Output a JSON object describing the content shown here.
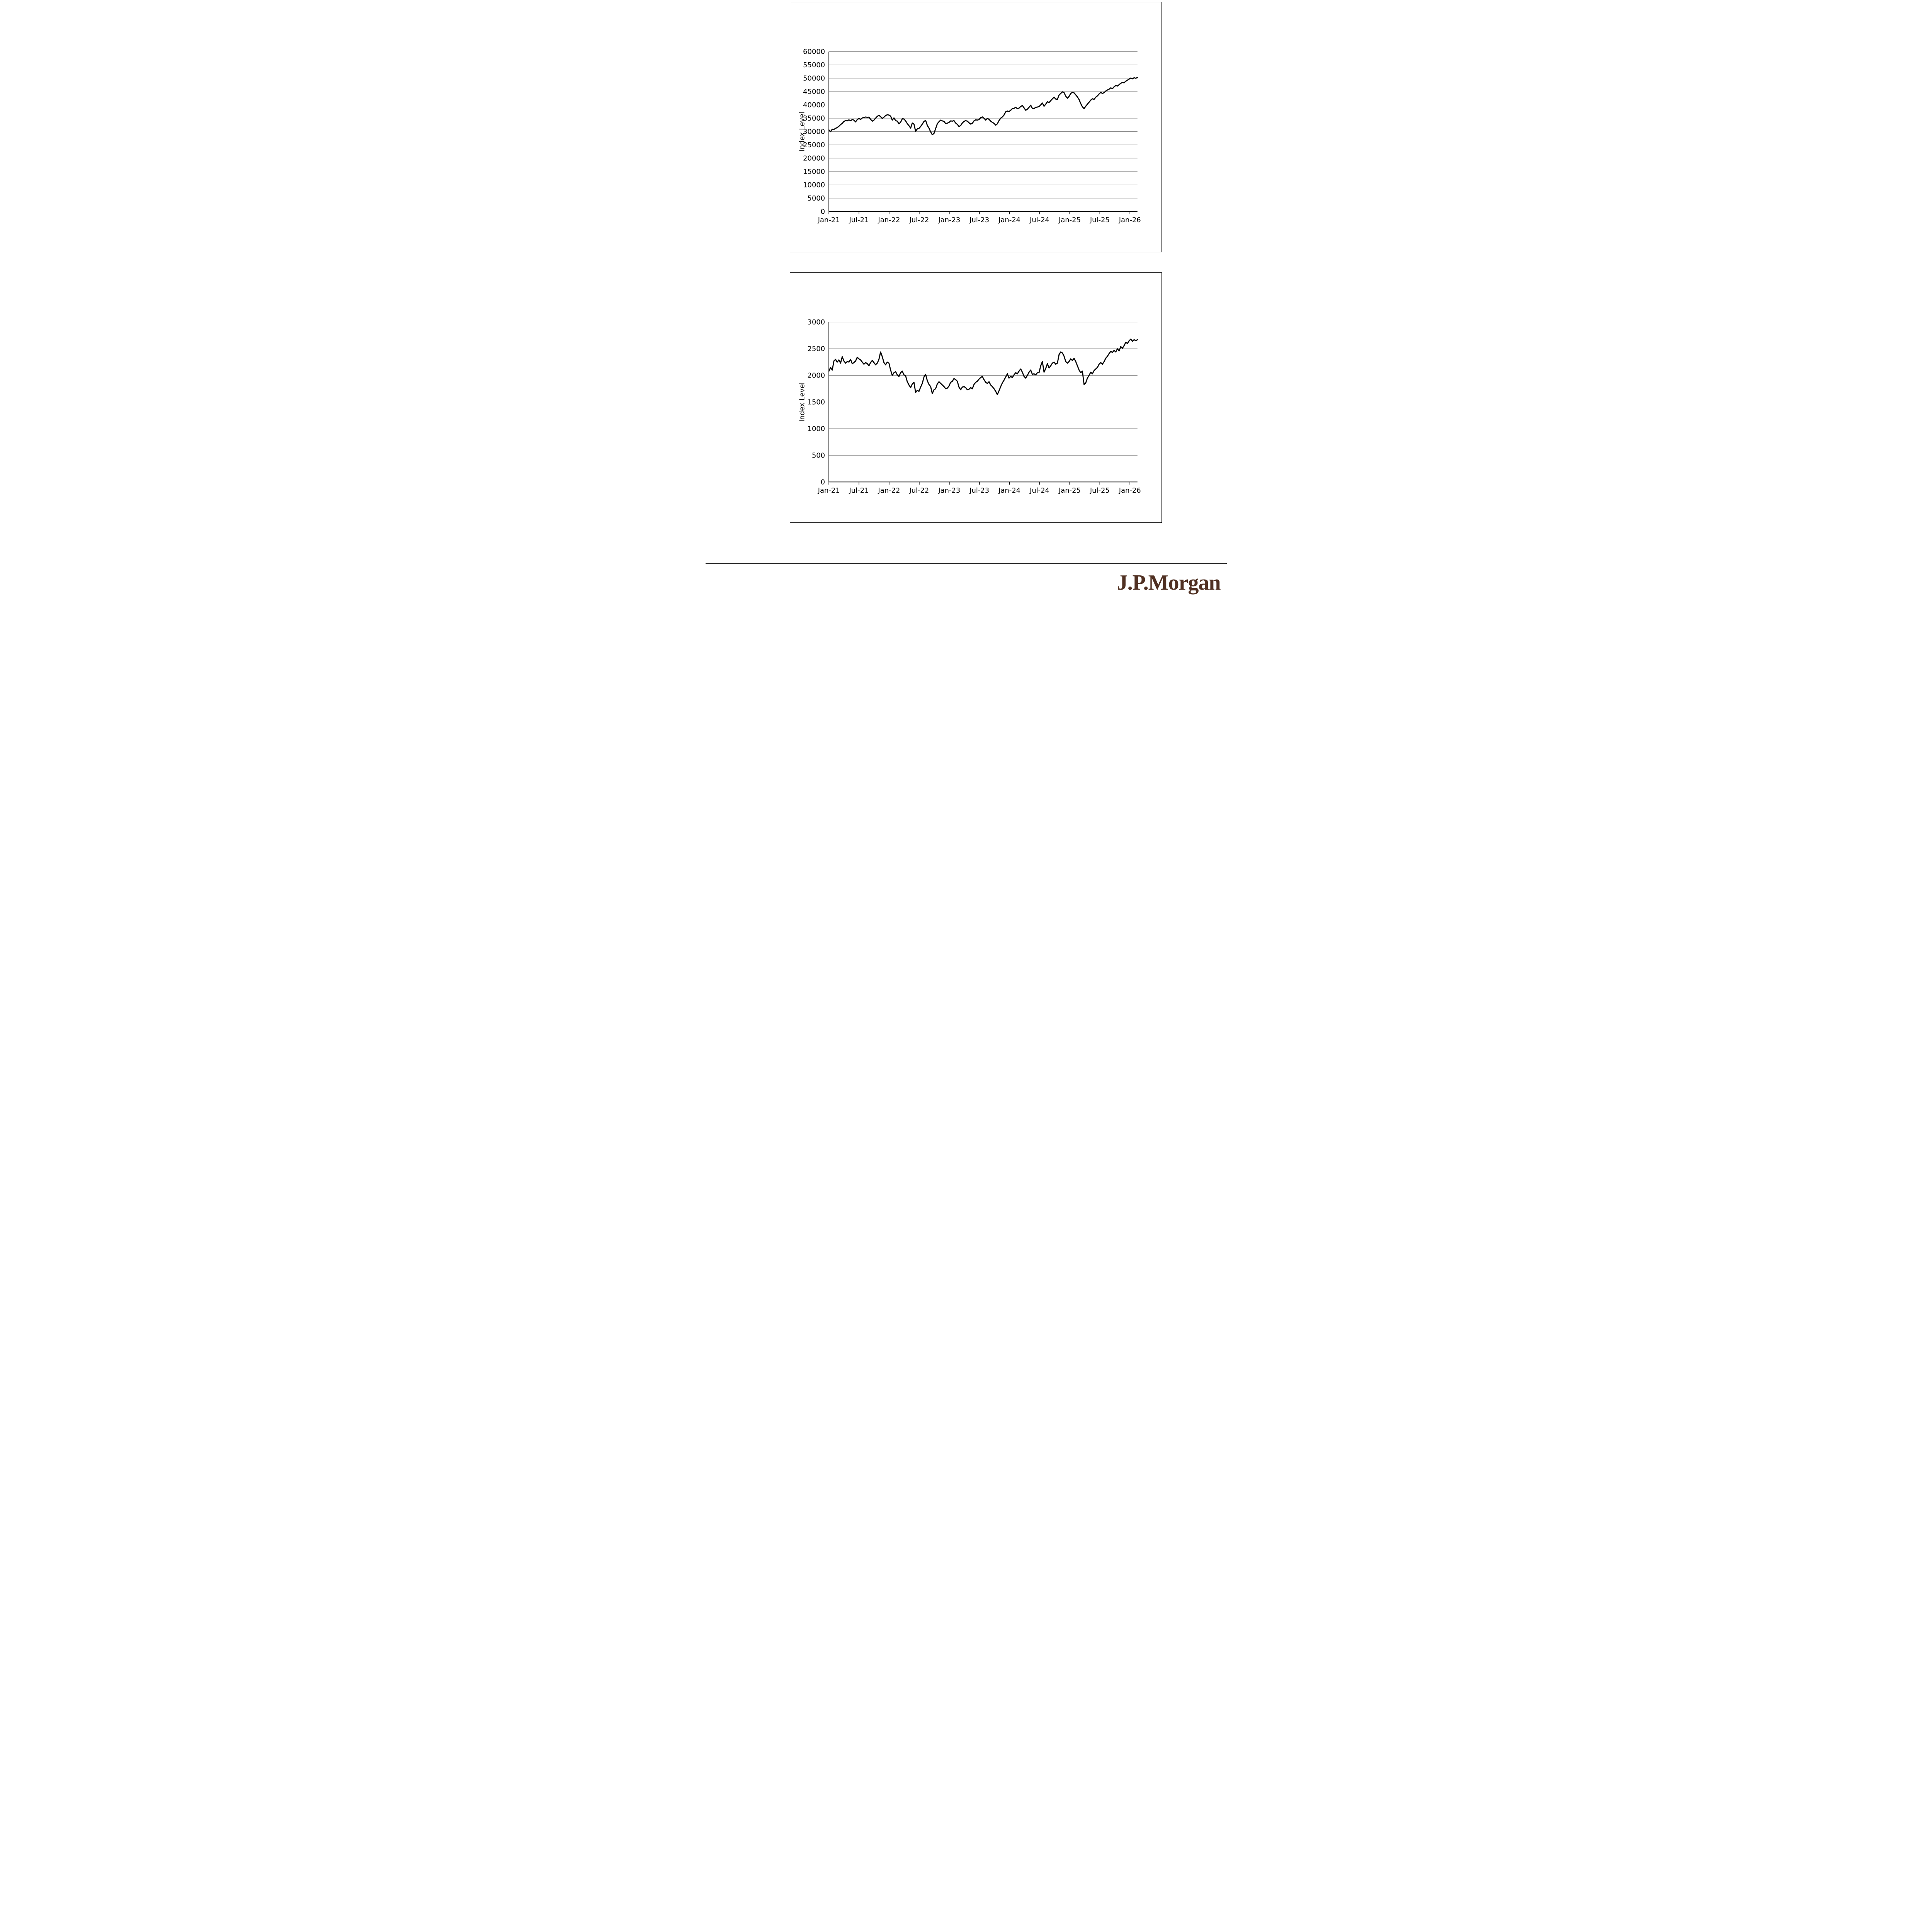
{
  "footer": {
    "brand": "J.P.Morgan",
    "brand_color": "#503022"
  },
  "chart_data": [
    {
      "type": "line",
      "title": "",
      "xlabel": "",
      "ylabel": "Index Level",
      "ylim": [
        0,
        60000
      ],
      "y_ticks": [
        0,
        5000,
        10000,
        15000,
        20000,
        25000,
        30000,
        35000,
        40000,
        45000,
        50000,
        55000,
        60000
      ],
      "x_tick_labels": [
        "Jan-21",
        "Jul-21",
        "Jan-22",
        "Jul-22",
        "Jan-23",
        "Jul-23",
        "Jan-24",
        "Jul-24",
        "Jan-25",
        "Jul-25",
        "Jan-26"
      ],
      "x_tick_months": [
        0,
        6,
        12,
        18,
        24,
        30,
        36,
        42,
        48,
        54,
        60
      ],
      "x_months_span": 61.5,
      "grid": "horizontal",
      "grid_color": "#7f7f7f",
      "line_color": "#000000",
      "legend": "none",
      "values": [
        30600,
        29950,
        30900,
        30800,
        31200,
        31500,
        32000,
        32600,
        33050,
        33800,
        34100,
        34000,
        34400,
        34050,
        34500,
        34300,
        33650,
        34500,
        34900,
        34550,
        35100,
        35300,
        35450,
        35350,
        35400,
        34600,
        33900,
        34300,
        35000,
        35700,
        36100,
        35600,
        34900,
        35400,
        36000,
        36300,
        36200,
        35800,
        34300,
        35100,
        34100,
        33900,
        32900,
        33500,
        34800,
        34700,
        34000,
        33000,
        32200,
        31300,
        33200,
        32800,
        30100,
        31000,
        31200,
        31900,
        32800,
        33800,
        34200,
        32300,
        31300,
        29900,
        28800,
        29300,
        31100,
        32900,
        33700,
        34300,
        34000,
        33800,
        33000,
        33150,
        33400,
        34000,
        33900,
        34100,
        33200,
        32700,
        31900,
        32250,
        33200,
        33800,
        34100,
        33900,
        33300,
        32800,
        33100,
        34000,
        34400,
        34300,
        34500,
        35200,
        35500,
        35000,
        34300,
        34900,
        34600,
        33900,
        33450,
        33100,
        32400,
        32900,
        34100,
        35000,
        35500,
        36200,
        37400,
        37700,
        37500,
        38000,
        38600,
        38700,
        39100,
        38600,
        38800,
        39400,
        39800,
        38900,
        38000,
        38400,
        39100,
        39900,
        38700,
        38600,
        39100,
        39200,
        39400,
        40000,
        40700,
        39500,
        40300,
        41200,
        40900,
        41600,
        42300,
        42900,
        42200,
        42100,
        43700,
        44300,
        44900,
        44600,
        43300,
        42500,
        43200,
        44300,
        44700,
        44500,
        43800,
        43000,
        42000,
        40500,
        39300,
        38600,
        39500,
        40300,
        41000,
        41800,
        42300,
        42100,
        42900,
        43400,
        44100,
        44700,
        44300,
        44600,
        45200,
        45600,
        45900,
        46400,
        46100,
        46800,
        47300,
        47100,
        47600,
        48100,
        48400,
        48300,
        48900,
        49300,
        49700,
        50100,
        49800,
        50200,
        50000,
        50300
      ]
    },
    {
      "type": "line",
      "title": "",
      "xlabel": "",
      "ylabel": "Index Level",
      "ylim": [
        0,
        3000
      ],
      "y_ticks": [
        0,
        500,
        1000,
        1500,
        2000,
        2500,
        3000
      ],
      "x_tick_labels": [
        "Jan-21",
        "Jul-21",
        "Jan-22",
        "Jul-22",
        "Jan-23",
        "Jul-23",
        "Jan-24",
        "Jul-24",
        "Jan-25",
        "Jul-25",
        "Jan-26"
      ],
      "x_tick_months": [
        0,
        6,
        12,
        18,
        24,
        30,
        36,
        42,
        48,
        54,
        60
      ],
      "x_months_span": 61.5,
      "grid": "horizontal",
      "grid_color": "#7f7f7f",
      "line_color": "#000000",
      "legend": "none",
      "values": [
        2080,
        2150,
        2100,
        2270,
        2300,
        2250,
        2290,
        2230,
        2350,
        2270,
        2230,
        2260,
        2250,
        2300,
        2220,
        2240,
        2270,
        2340,
        2310,
        2290,
        2250,
        2210,
        2240,
        2220,
        2180,
        2240,
        2280,
        2240,
        2200,
        2230,
        2300,
        2440,
        2350,
        2240,
        2200,
        2250,
        2230,
        2100,
        2000,
        2050,
        2070,
        2010,
        1980,
        2050,
        2080,
        2010,
        1990,
        1880,
        1820,
        1770,
        1840,
        1870,
        1680,
        1720,
        1700,
        1780,
        1850,
        1970,
        2020,
        1900,
        1830,
        1790,
        1660,
        1730,
        1750,
        1840,
        1880,
        1850,
        1820,
        1790,
        1750,
        1760,
        1800,
        1870,
        1890,
        1940,
        1920,
        1890,
        1780,
        1730,
        1780,
        1790,
        1770,
        1730,
        1740,
        1770,
        1750,
        1830,
        1870,
        1890,
        1930,
        1960,
        1980,
        1920,
        1870,
        1850,
        1880,
        1820,
        1790,
        1750,
        1700,
        1640,
        1710,
        1790,
        1860,
        1910,
        1970,
        2030,
        1950,
        1980,
        1960,
        2010,
        2050,
        2030,
        2080,
        2120,
        2060,
        1980,
        1950,
        2000,
        2060,
        2100,
        2020,
        2030,
        2010,
        2050,
        2050,
        2180,
        2260,
        2060,
        2130,
        2220,
        2140,
        2180,
        2230,
        2250,
        2210,
        2230,
        2390,
        2440,
        2420,
        2360,
        2260,
        2230,
        2260,
        2310,
        2280,
        2320,
        2260,
        2180,
        2100,
        2050,
        2080,
        1830,
        1860,
        1950,
        2000,
        2060,
        2030,
        2090,
        2120,
        2150,
        2210,
        2240,
        2210,
        2260,
        2320,
        2360,
        2410,
        2450,
        2430,
        2470,
        2440,
        2500,
        2460,
        2540,
        2510,
        2560,
        2620,
        2600,
        2650,
        2680,
        2640,
        2670,
        2650,
        2670
      ]
    }
  ]
}
